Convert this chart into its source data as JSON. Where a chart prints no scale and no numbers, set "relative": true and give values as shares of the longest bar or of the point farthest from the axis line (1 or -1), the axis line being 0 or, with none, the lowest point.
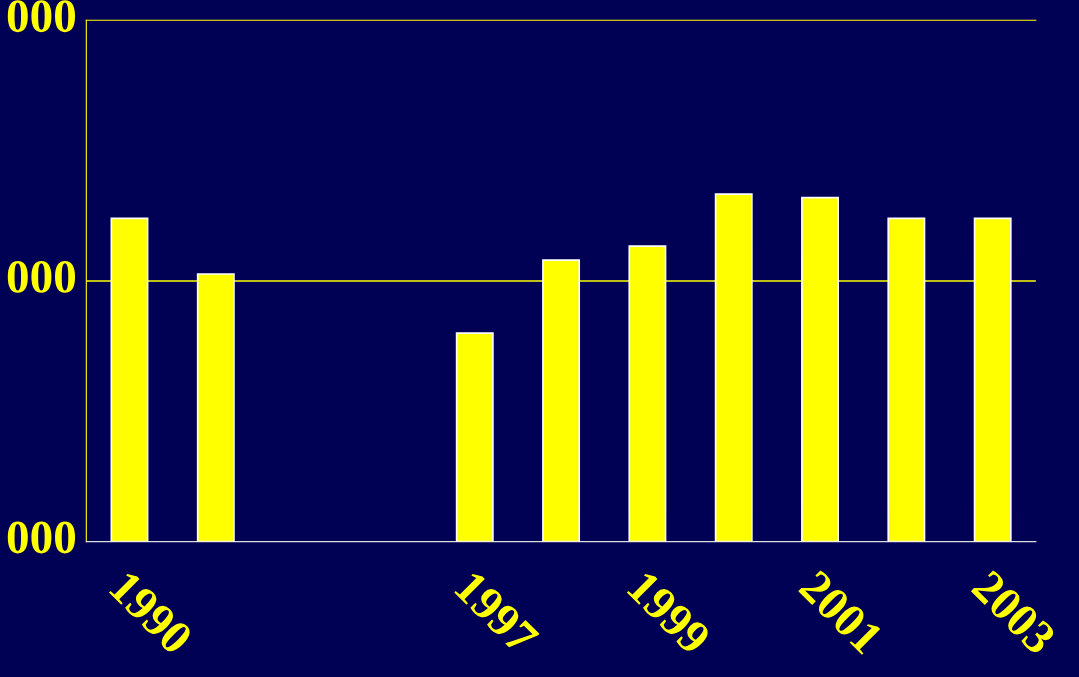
{
  "chart_data": {
    "type": "bar",
    "categories": [
      "1990",
      null,
      null,
      null,
      "1997",
      null,
      "1999",
      null,
      "2001",
      null,
      "2003"
    ],
    "series": [
      {
        "color": "#ffff00",
        "values": [
          0.93,
          0.77,
          null,
          null,
          0.6,
          0.81,
          0.85,
          1,
          0.99,
          0.93,
          0.93
        ]
      }
    ],
    "relative": true,
    "annotations": [
      "000",
      "000",
      "000"
    ],
    "ref_lines": [
      {
        "axis": "y",
        "value": 0.75,
        "color": "#ffff00"
      }
    ]
  }
}
